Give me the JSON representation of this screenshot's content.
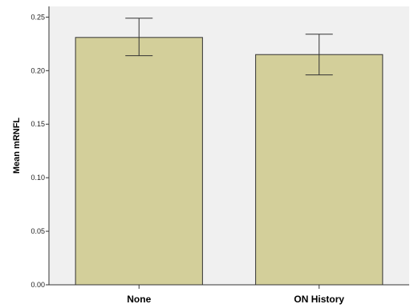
{
  "chart_data": {
    "type": "bar",
    "title": "",
    "xlabel": "",
    "ylabel": "Mean mRNFL",
    "categories": [
      "None",
      "ON History"
    ],
    "values": [
      0.231,
      0.215
    ],
    "error_low": [
      0.214,
      0.196
    ],
    "error_high": [
      0.249,
      0.234
    ],
    "ylim": [
      0.0,
      0.26
    ],
    "yticks": [
      0.0,
      0.05,
      0.1,
      0.15,
      0.2,
      0.25
    ],
    "ytick_labels": [
      "0.00",
      "0.05",
      "0.10",
      "0.15",
      "0.20",
      "0.25"
    ],
    "grid": false,
    "legend": "none",
    "colors": {
      "bar_fill": "#d3cf9a",
      "bar_stroke": "#333333",
      "plot_background": "#f0f0f0",
      "error_bar": "#333333"
    }
  }
}
